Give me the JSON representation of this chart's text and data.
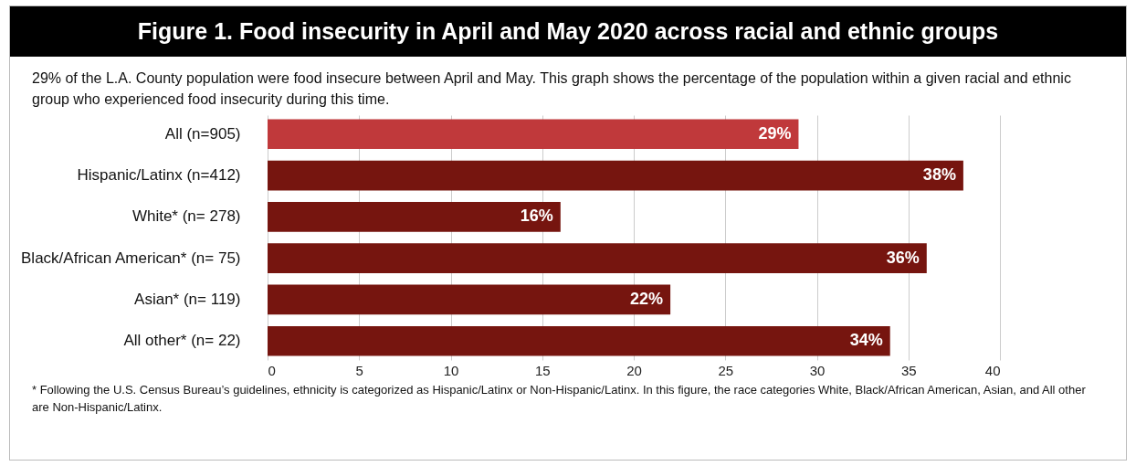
{
  "chart_data": {
    "type": "bar",
    "orientation": "horizontal",
    "title": "Figure 1. Food insecurity in April and May 2020 across racial and ethnic groups",
    "subtitle": "29% of the L.A. County population were food insecure between April and May. This graph shows the percentage of the population within a given racial and ethnic group who experienced food insecurity during this time.",
    "categories": [
      "All (n=905)",
      "Hispanic/Latinx (n=412)",
      "White* (n= 278)",
      "Black/African American* (n= 75)",
      "Asian* (n= 119)",
      "All other* (n= 22)"
    ],
    "values": [
      29,
      38,
      16,
      36,
      22,
      34
    ],
    "colors": [
      "#c0393b",
      "#76150f",
      "#76150f",
      "#76150f",
      "#76150f",
      "#76150f"
    ],
    "value_labels": [
      "29%",
      "38%",
      "16%",
      "36%",
      "22%",
      "34%"
    ],
    "xlim": [
      0,
      40
    ],
    "xticks": [
      0,
      5,
      10,
      15,
      20,
      25,
      30,
      35,
      40
    ],
    "grid": "x",
    "annotations": [
      "* Following the U.S. Census Bureau’s guidelines, ethnicity is categorized as Hispanic/Latinx or Non-Hispanic/Latinx. In this figure, the race categories White, Black/African American, Asian, and All other are Non-Hispanic/Latinx."
    ]
  }
}
